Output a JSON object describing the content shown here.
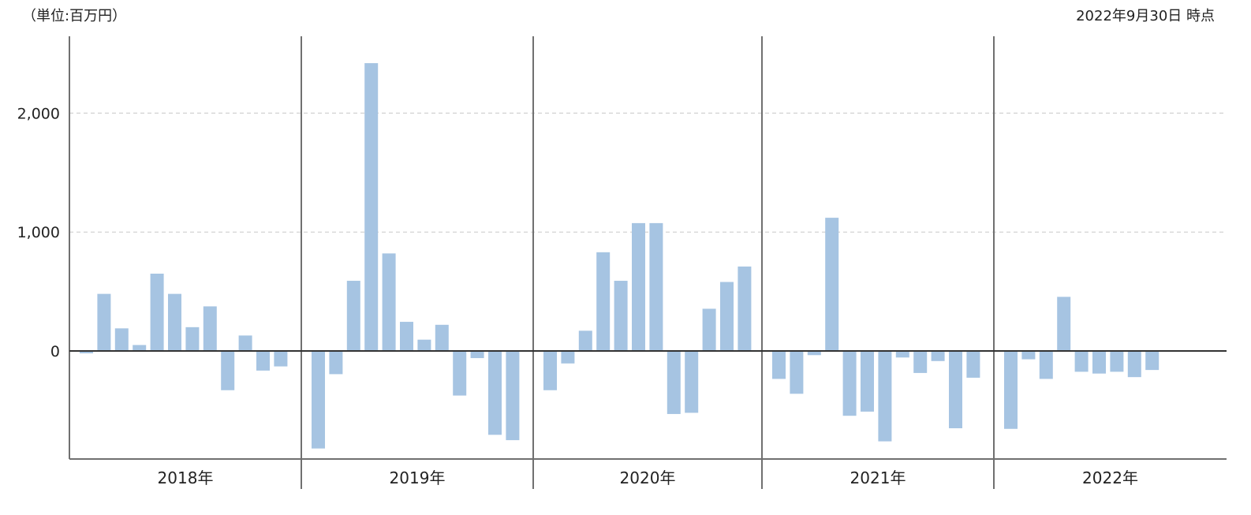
{
  "header": {
    "unit_label": "（単位:百万円）",
    "as_of_label": "2022年9月30日 時点"
  },
  "colors": {
    "bar": "#a6c4e2",
    "grid": "#c8c8c8",
    "axis": "#333333",
    "divider": "#707070"
  },
  "chart_data": {
    "type": "bar",
    "ylabel": "",
    "xlabel": "",
    "ylim": [
      -900,
      2650
    ],
    "yticks": [
      0,
      1000,
      2000
    ],
    "ytick_labels": [
      "0",
      "1,000",
      "2,000"
    ],
    "grid": "horizontal dashed",
    "groups": [
      {
        "label": "2018年",
        "values": [
          -20,
          480,
          190,
          50,
          650,
          480,
          200,
          375,
          -330,
          130,
          -165,
          -130
        ]
      },
      {
        "label": "2019年",
        "values": [
          -820,
          -195,
          590,
          2420,
          820,
          245,
          95,
          220,
          -375,
          -60,
          -705,
          -750
        ]
      },
      {
        "label": "2020年",
        "values": [
          -330,
          -105,
          170,
          830,
          590,
          1075,
          1075,
          -530,
          -520,
          355,
          580,
          710
        ]
      },
      {
        "label": "2021年",
        "values": [
          -235,
          -360,
          -35,
          1120,
          -545,
          -510,
          -760,
          -55,
          -185,
          -85,
          -650,
          -225
        ]
      },
      {
        "label": "2022年",
        "values": [
          -655,
          -70,
          -235,
          455,
          -175,
          -190,
          -175,
          -220,
          -160
        ]
      }
    ]
  }
}
